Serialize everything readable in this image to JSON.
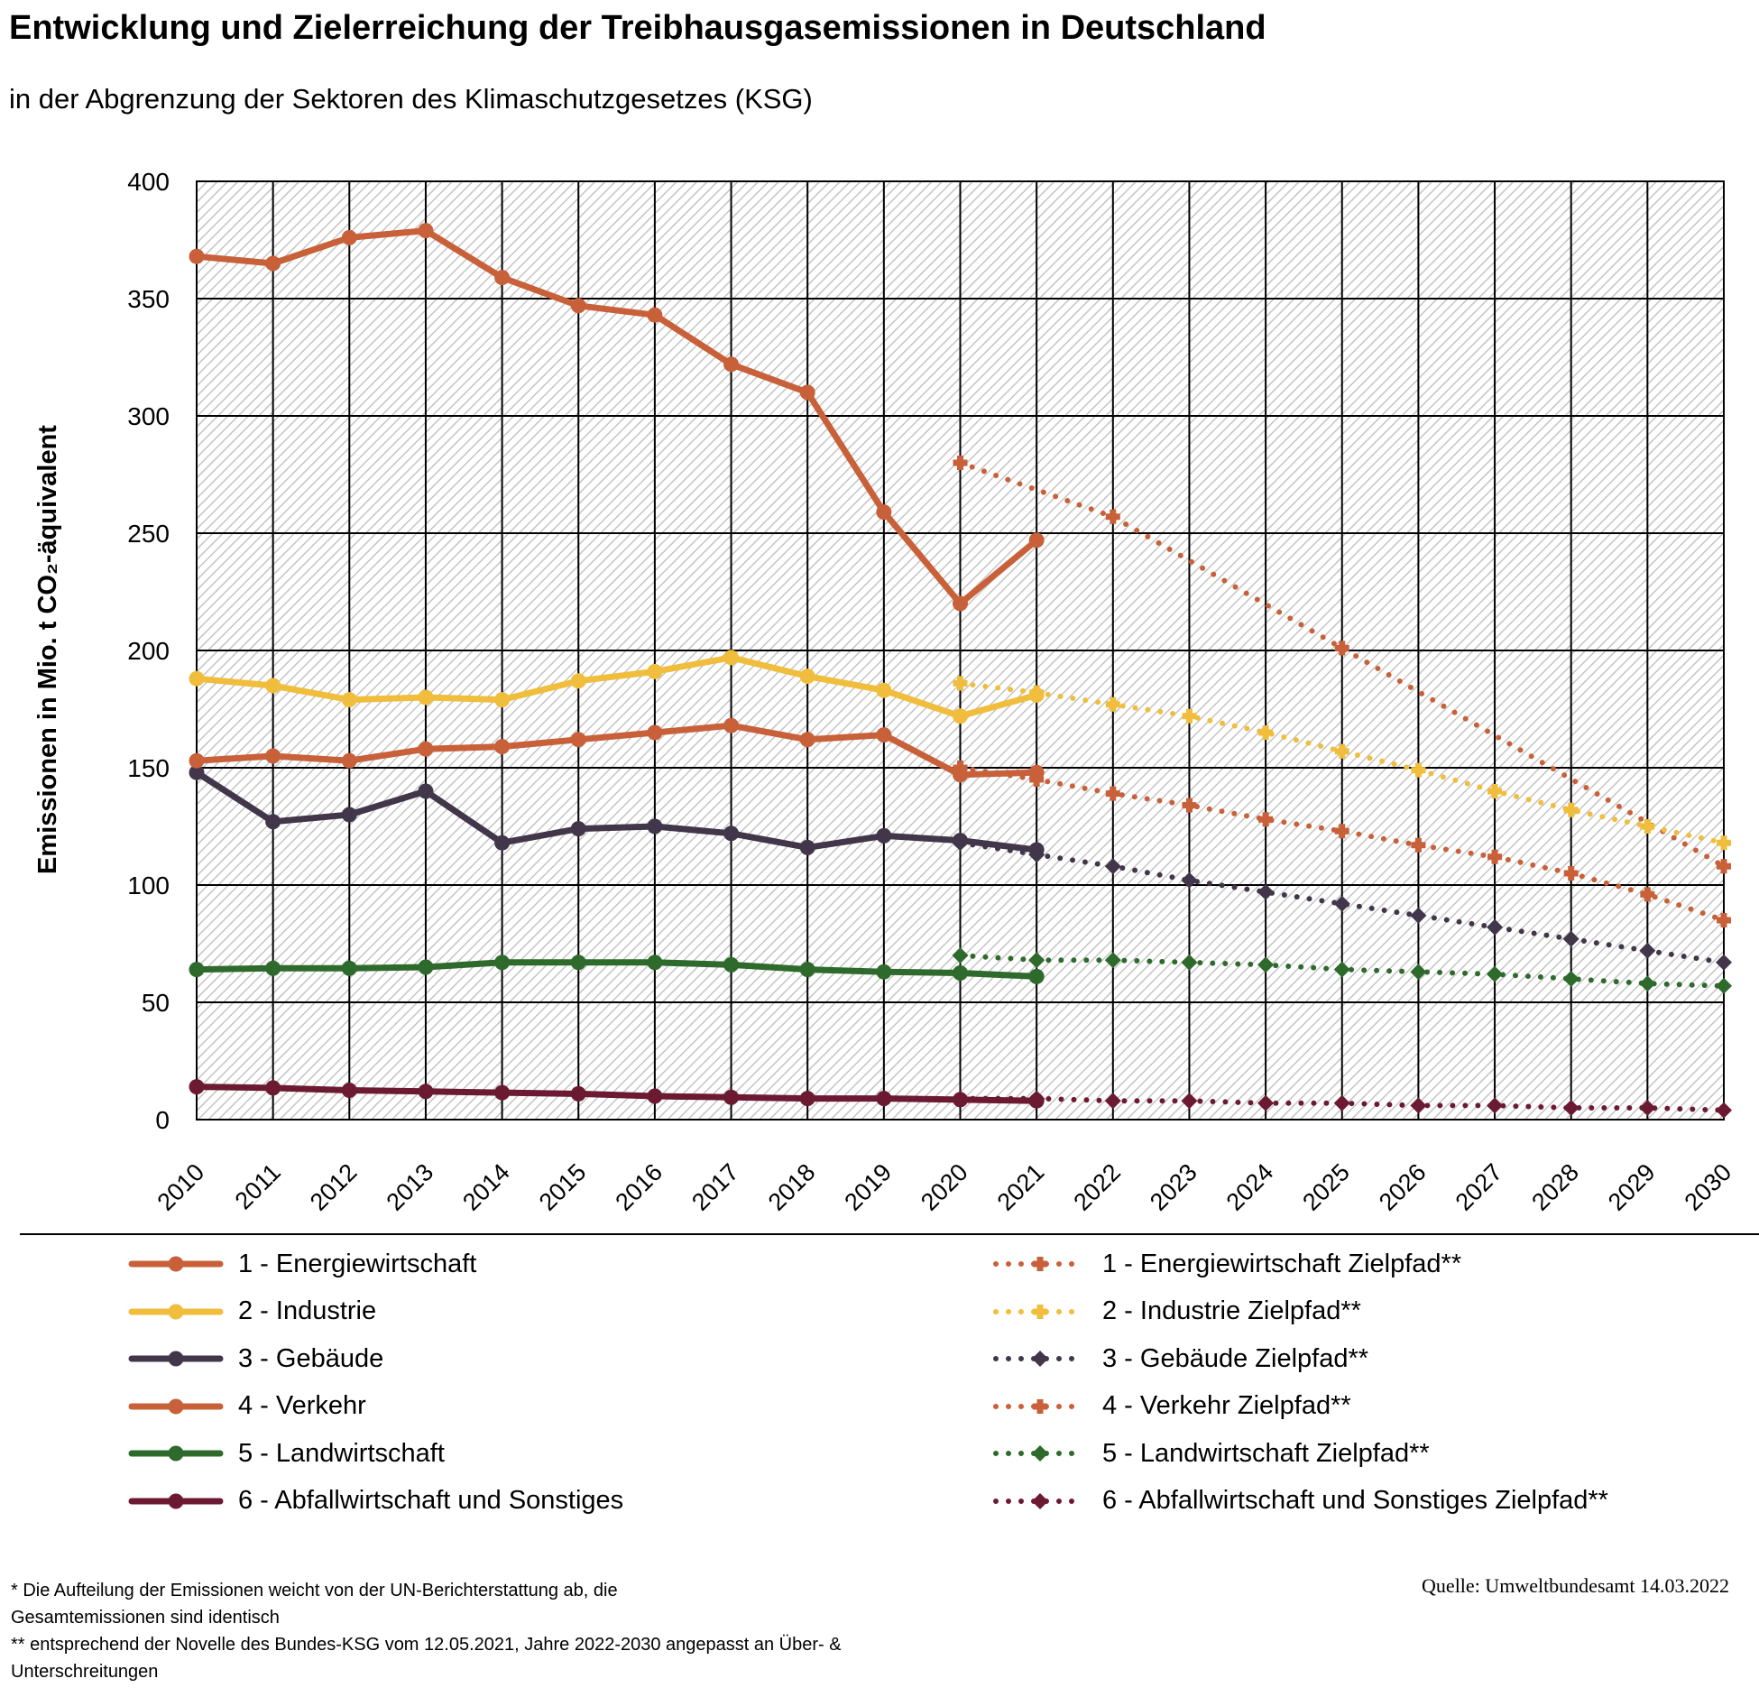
{
  "title": "Entwicklung und Zielerreichung der Treibhausgasemissionen in Deutschland",
  "subtitle": "in der Abgrenzung der Sektoren des Klimaschutzgesetzes (KSG)",
  "footnote_1": "* Die Aufteilung der Emissionen weicht von der UN-Berichterstattung ab, die Gesamtemissionen sind identisch",
  "footnote_2": "** entsprechend der Novelle des Bundes-KSG vom 12.05.2021, Jahre 2022-2030 angepasst an Über- & Unterschreitungen",
  "source": "Quelle: Umweltbundesamt  14.03.2022",
  "chart_data": {
    "type": "line",
    "title": "Entwicklung und Zielerreichung der Treibhausgasemissionen in Deutschland",
    "subtitle": "in der Abgrenzung der Sektoren des Klimaschutzgesetzes (KSG)",
    "ylabel": "Emissionen in Mio. t CO₂-äquivalent",
    "xlabel": "",
    "x": [
      "2010",
      "2011",
      "2012",
      "2013",
      "2014",
      "2015",
      "2016",
      "2017",
      "2018",
      "2019",
      "2020",
      "2021",
      "2022",
      "2023",
      "2024",
      "2025",
      "2026",
      "2027",
      "2028",
      "2029",
      "2030"
    ],
    "ylim": [
      0,
      400
    ],
    "yticks": [
      0,
      50,
      100,
      150,
      200,
      250,
      300,
      350,
      400
    ],
    "grid": true,
    "background": "diagonal hatch",
    "legend_position": "bottom",
    "series": [
      {
        "name": "1 - Energiewirtschaft",
        "color": "#C8603A",
        "style": "solid",
        "marker": "circle",
        "values": [
          368,
          365,
          376,
          379,
          359,
          347,
          343,
          322,
          310,
          259,
          220,
          247,
          null,
          null,
          null,
          null,
          null,
          null,
          null,
          null,
          null
        ]
      },
      {
        "name": "2 - Industrie",
        "color": "#F0BE3C",
        "style": "solid",
        "marker": "circle",
        "values": [
          188,
          185,
          179,
          180,
          179,
          187,
          191,
          197,
          189,
          183,
          172,
          181,
          null,
          null,
          null,
          null,
          null,
          null,
          null,
          null,
          null
        ]
      },
      {
        "name": "3 - Gebäude",
        "color": "#42364A",
        "style": "solid",
        "marker": "circle",
        "values": [
          148,
          127,
          130,
          140,
          118,
          124,
          125,
          122,
          116,
          121,
          119,
          115,
          null,
          null,
          null,
          null,
          null,
          null,
          null,
          null,
          null
        ]
      },
      {
        "name": "4 - Verkehr",
        "color": "#C8603A",
        "style": "solid",
        "marker": "circle",
        "values": [
          153,
          155,
          153,
          158,
          159,
          162,
          165,
          168,
          162,
          164,
          147,
          148,
          null,
          null,
          null,
          null,
          null,
          null,
          null,
          null,
          null
        ]
      },
      {
        "name": "5 - Landwirtschaft",
        "color": "#2E6A2C",
        "style": "solid",
        "marker": "circle",
        "values": [
          64,
          64.5,
          64.5,
          65,
          67,
          67,
          67,
          66,
          64,
          63,
          62.5,
          61,
          null,
          null,
          null,
          null,
          null,
          null,
          null,
          null,
          null
        ]
      },
      {
        "name": "6 - Abfallwirtschaft und Sonstiges",
        "color": "#6B1A32",
        "style": "solid",
        "marker": "circle",
        "values": [
          14,
          13.5,
          12.5,
          12,
          11.5,
          11,
          10,
          9.5,
          9,
          9,
          8.5,
          8,
          null,
          null,
          null,
          null,
          null,
          null,
          null,
          null,
          null
        ]
      },
      {
        "name": "1 - Energiewirtschaft Zielpfad**",
        "color": "#C8603A",
        "style": "dotted",
        "marker": "plus",
        "values": [
          null,
          null,
          null,
          null,
          null,
          null,
          null,
          null,
          null,
          null,
          280,
          null,
          257,
          null,
          null,
          201,
          null,
          null,
          null,
          null,
          108
        ]
      },
      {
        "name": "2 - Industrie Zielpfad**",
        "color": "#F0BE3C",
        "style": "dotted",
        "marker": "plus",
        "values": [
          null,
          null,
          null,
          null,
          null,
          null,
          null,
          null,
          null,
          null,
          186,
          182,
          177,
          172,
          165,
          157,
          149,
          140,
          132,
          125,
          118
        ]
      },
      {
        "name": "3 - Gebäude Zielpfad**",
        "color": "#42364A",
        "style": "dotted",
        "marker": "diamond",
        "values": [
          null,
          null,
          null,
          null,
          null,
          null,
          null,
          null,
          null,
          null,
          118,
          113,
          108,
          102,
          97,
          92,
          87,
          82,
          77,
          72,
          67
        ]
      },
      {
        "name": "4 - Verkehr Zielpfad**",
        "color": "#C8603A",
        "style": "dotted",
        "marker": "plus",
        "values": [
          null,
          null,
          null,
          null,
          null,
          null,
          null,
          null,
          null,
          null,
          150,
          145,
          139,
          134,
          128,
          123,
          117,
          112,
          105,
          96,
          85
        ]
      },
      {
        "name": "5 - Landwirtschaft Zielpfad**",
        "color": "#2E6A2C",
        "style": "dotted",
        "marker": "diamond",
        "values": [
          null,
          null,
          null,
          null,
          null,
          null,
          null,
          null,
          null,
          null,
          70,
          68,
          68,
          67,
          66,
          64,
          63,
          62,
          60,
          58,
          57
        ]
      },
      {
        "name": "6 - Abfallwirtschaft und Sonstiges Zielpfad**",
        "color": "#6B1A32",
        "style": "dotted",
        "marker": "diamond",
        "values": [
          null,
          null,
          null,
          null,
          null,
          null,
          null,
          null,
          null,
          null,
          9,
          9,
          8,
          8,
          7,
          7,
          6,
          6,
          5,
          5,
          4
        ]
      }
    ]
  }
}
